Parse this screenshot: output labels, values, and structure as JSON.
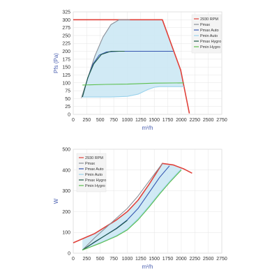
{
  "chart_data": [
    {
      "type": "line",
      "xlabel": "m³/h",
      "ylabel": "Pfs (Pa)",
      "xlim": [
        0,
        2750
      ],
      "ylim": [
        0,
        325
      ],
      "xticks": [
        "0",
        "250",
        "500",
        "750",
        "1000",
        "1250",
        "1500",
        "1750",
        "2000",
        "2250",
        "2500",
        "2750"
      ],
      "yticks": [
        "0",
        "25",
        "50",
        "75",
        "100",
        "125",
        "150",
        "175",
        "200",
        "225",
        "250",
        "275",
        "300",
        "325"
      ],
      "grid": true,
      "legend_position": "top-right",
      "shaded_region": {
        "color": "#cce8f4",
        "between": [
          "2930 RPM",
          "Pmin Auto"
        ]
      },
      "series": [
        {
          "name": "2930 RPM",
          "color": "#e0413a",
          "points": [
            [
              0,
              300
            ],
            [
              1650,
              300
            ],
            [
              1990,
              140
            ],
            [
              2150,
              3
            ]
          ]
        },
        {
          "name": "Pmax",
          "color": "#8a8f98",
          "points": [
            [
              150,
              52
            ],
            [
              250,
              105
            ],
            [
              400,
              185
            ],
            [
              550,
              245
            ],
            [
              700,
              285
            ],
            [
              850,
              300
            ],
            [
              1050,
              300
            ]
          ]
        },
        {
          "name": "Pmax Auto",
          "color": "#3556b0",
          "points": [
            [
              170,
              55
            ],
            [
              260,
              110
            ],
            [
              360,
              158
            ],
            [
              480,
              188
            ],
            [
              620,
              198
            ],
            [
              850,
              200
            ],
            [
              1850,
              200
            ]
          ]
        },
        {
          "name": "Pmin Auto",
          "color": "#9bd3ec",
          "points": [
            [
              170,
              55
            ],
            [
              700,
              55
            ],
            [
              1000,
              57
            ],
            [
              1200,
              64
            ],
            [
              1370,
              78
            ],
            [
              1500,
              86
            ],
            [
              1600,
              88
            ],
            [
              2050,
              88
            ]
          ]
        },
        {
          "name": "Pmax Hygro",
          "color": "#1f5b46",
          "points": [
            [
              170,
              55
            ],
            [
              270,
              117
            ],
            [
              380,
              160
            ],
            [
              520,
              190
            ],
            [
              700,
              200
            ],
            [
              950,
              200
            ]
          ]
        },
        {
          "name": "Pmin Hygro",
          "color": "#5cbf4d",
          "points": [
            [
              170,
              93
            ],
            [
              600,
              95
            ],
            [
              1000,
              96
            ],
            [
              1500,
              99
            ],
            [
              2050,
              100
            ]
          ]
        }
      ]
    },
    {
      "type": "line",
      "xlabel": "m³/h",
      "ylabel": "W",
      "xlim": [
        0,
        2750
      ],
      "ylim": [
        0,
        500
      ],
      "xticks": [
        "0",
        "250",
        "500",
        "750",
        "1000",
        "1250",
        "1500",
        "1750",
        "2000",
        "2250",
        "2500",
        "2750"
      ],
      "yticks": [
        "0",
        "100",
        "200",
        "300",
        "400",
        "500"
      ],
      "grid": true,
      "legend_position": "top-left",
      "shaded_region": {
        "color": "#cce8f4",
        "between": [
          "2930 RPM",
          "Pmin Hygro"
        ]
      },
      "series": [
        {
          "name": "2930 RPM",
          "color": "#e0413a",
          "points": [
            [
              0,
              50
            ],
            [
              400,
              95
            ],
            [
              800,
              160
            ],
            [
              1000,
              200
            ],
            [
              1200,
              255
            ],
            [
              1400,
              330
            ],
            [
              1650,
              432
            ],
            [
              1850,
              425
            ],
            [
              2050,
              405
            ],
            [
              2200,
              385
            ]
          ]
        },
        {
          "name": "Pmax",
          "color": "#8a8f98",
          "points": [
            [
              170,
              15
            ],
            [
              400,
              75
            ],
            [
              700,
              145
            ],
            [
              1000,
              215
            ],
            [
              1200,
              275
            ],
            [
              1400,
              345
            ],
            [
              1650,
              432
            ]
          ]
        },
        {
          "name": "Pmax Auto",
          "color": "#3556b0",
          "points": [
            [
              170,
              15
            ],
            [
              500,
              70
            ],
            [
              800,
              120
            ],
            [
              1000,
              160
            ],
            [
              1200,
              215
            ],
            [
              1400,
              290
            ],
            [
              1600,
              365
            ],
            [
              1780,
              420
            ]
          ]
        },
        {
          "name": "Pmin Auto",
          "color": "#9bd3ec",
          "points": [
            [
              170,
              15
            ],
            [
              500,
              50
            ],
            [
              800,
              85
            ],
            [
              1000,
              115
            ],
            [
              1200,
              165
            ],
            [
              1400,
              225
            ],
            [
              1600,
              290
            ],
            [
              1800,
              350
            ],
            [
              2000,
              405
            ]
          ]
        },
        {
          "name": "Pmax Hygro",
          "color": "#1f5b46",
          "points": [
            [
              170,
              15
            ],
            [
              400,
              55
            ],
            [
              800,
              118
            ],
            [
              1000,
              158
            ]
          ]
        },
        {
          "name": "Pmin Hygro",
          "color": "#5cbf4d",
          "points": [
            [
              170,
              15
            ],
            [
              500,
              48
            ],
            [
              800,
              82
            ],
            [
              1000,
              112
            ],
            [
              1200,
              160
            ],
            [
              1400,
              220
            ],
            [
              1600,
              285
            ],
            [
              1800,
              345
            ],
            [
              2000,
              400
            ]
          ]
        }
      ]
    }
  ]
}
